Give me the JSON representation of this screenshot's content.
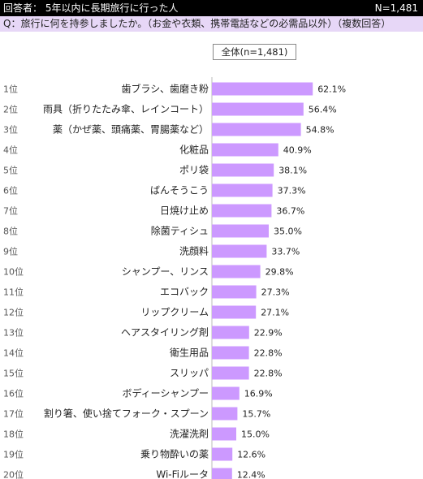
{
  "header": {
    "respondents": "回答者： 5年以内に長期旅行に行った人",
    "sample_size": "N=1,481"
  },
  "question": "Q：旅行に何を持参しましたか。（お金や衣類、携帯電話などの必需品以外）（複数回答）",
  "chart_data": {
    "type": "bar",
    "orientation": "horizontal",
    "legend": "全体(n=1,481)",
    "ranks": [
      "1位",
      "2位",
      "3位",
      "4位",
      "5位",
      "6位",
      "7位",
      "8位",
      "9位",
      "10位",
      "11位",
      "12位",
      "13位",
      "14位",
      "15位",
      "16位",
      "17位",
      "18位",
      "19位",
      "20位"
    ],
    "categories": [
      "歯ブラシ、歯磨き粉",
      "雨具（折りたたみ傘、レインコート）",
      "薬（かぜ薬、頭痛薬、胃腸薬など）",
      "化粧品",
      "ポリ袋",
      "ばんそうこう",
      "日焼け止め",
      "除菌ティシュ",
      "洗顔料",
      "シャンプー、リンス",
      "エコバック",
      "リップクリーム",
      "ヘアスタイリング剤",
      "衛生用品",
      "スリッパ",
      "ボディーシャンプー",
      "割り箸、使い捨てフォーク・スプーン",
      "洗濯洗剤",
      "乗り物酔いの薬",
      "Wi-Fiルータ"
    ],
    "values": [
      62.1,
      56.4,
      54.8,
      40.9,
      38.1,
      37.3,
      36.7,
      35.0,
      33.7,
      29.8,
      27.3,
      27.1,
      22.9,
      22.8,
      22.8,
      16.9,
      15.7,
      15.0,
      12.6,
      12.4
    ],
    "value_labels": [
      "62.1%",
      "56.4%",
      "54.8%",
      "40.9%",
      "38.1%",
      "37.3%",
      "36.7%",
      "35.0%",
      "33.7%",
      "29.8%",
      "27.3%",
      "27.1%",
      "22.9%",
      "22.8%",
      "22.8%",
      "16.9%",
      "15.7%",
      "15.0%",
      "12.6%",
      "12.4%"
    ],
    "bar_color": "#cc99ff",
    "xlim": [
      0,
      100
    ]
  }
}
